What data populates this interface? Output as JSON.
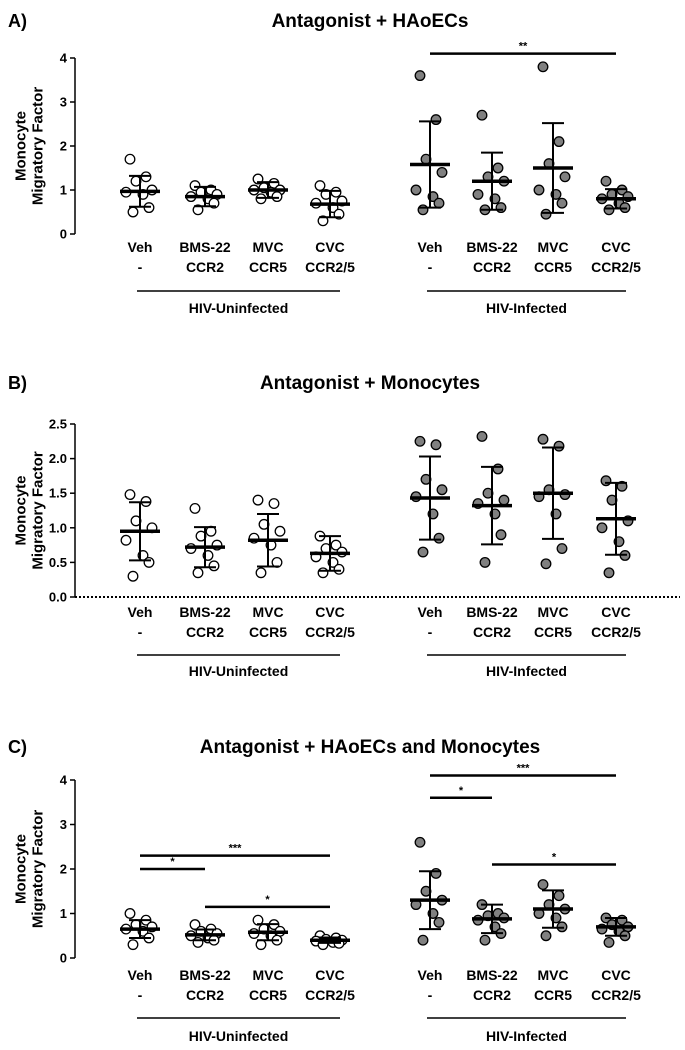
{
  "chart_data": [
    {
      "type": "scatter",
      "panel": "A)",
      "title": "Antagonist + HAoECs",
      "ylabel": "Monocyte\nMigratory Factor",
      "ylim": [
        0,
        4
      ],
      "yticks": [
        "0",
        "1",
        "2",
        "3",
        "4"
      ],
      "categories": [
        [
          "Veh",
          "-"
        ],
        [
          "BMS-22",
          "CCR2"
        ],
        [
          "MVC",
          "CCR5"
        ],
        [
          "CVC",
          "CCR2/5"
        ],
        [
          "Veh",
          "-"
        ],
        [
          "BMS-22",
          "CCR2"
        ],
        [
          "MVC",
          "CCR5"
        ],
        [
          "CVC",
          "CCR2/5"
        ]
      ],
      "groups": [
        {
          "label": "HIV-Uninfected",
          "categories": [
            0,
            1,
            2,
            3
          ],
          "fill": "#ffffff"
        },
        {
          "label": "HIV-Infected",
          "categories": [
            4,
            5,
            6,
            7
          ],
          "fill": "#808080"
        }
      ],
      "points": [
        [
          1.7,
          1.3,
          1.2,
          1.0,
          0.95,
          0.9,
          0.6,
          0.5
        ],
        [
          1.1,
          1.0,
          0.95,
          0.9,
          0.85,
          0.8,
          0.7,
          0.55
        ],
        [
          1.25,
          1.15,
          1.05,
          1.0,
          1.0,
          0.95,
          0.85,
          0.8
        ],
        [
          1.1,
          0.95,
          0.9,
          0.75,
          0.7,
          0.6,
          0.45,
          0.3
        ],
        [
          3.6,
          2.6,
          1.7,
          1.4,
          1.0,
          0.85,
          0.7,
          0.55
        ],
        [
          2.7,
          1.5,
          1.3,
          1.2,
          0.9,
          0.8,
          0.6,
          0.55
        ],
        [
          3.8,
          2.1,
          1.6,
          1.3,
          1.0,
          0.9,
          0.7,
          0.45
        ],
        [
          1.2,
          1.0,
          0.9,
          0.85,
          0.8,
          0.7,
          0.6,
          0.55
        ]
      ],
      "mean": [
        0.97,
        0.85,
        1.0,
        0.68,
        1.58,
        1.2,
        1.5,
        0.8
      ],
      "sd": [
        0.35,
        0.22,
        0.18,
        0.3,
        0.98,
        0.65,
        1.02,
        0.22
      ],
      "significance": [
        {
          "from": 4,
          "to": 7,
          "y": 4.1,
          "label": "**"
        }
      ]
    },
    {
      "type": "scatter",
      "panel": "B)",
      "title": "Antagonist + Monocytes",
      "ylabel": "Monocyte\nMigratory Factor",
      "ylim": [
        0,
        2.5
      ],
      "yticks": [
        "0.0",
        "0.5",
        "1.0",
        "1.5",
        "2.0",
        "2.5"
      ],
      "categories": [
        [
          "Veh",
          "-"
        ],
        [
          "BMS-22",
          "CCR2"
        ],
        [
          "MVC",
          "CCR5"
        ],
        [
          "CVC",
          "CCR2/5"
        ],
        [
          "Veh",
          "-"
        ],
        [
          "BMS-22",
          "CCR2"
        ],
        [
          "MVC",
          "CCR5"
        ],
        [
          "CVC",
          "CCR2/5"
        ]
      ],
      "groups": [
        {
          "label": "HIV-Uninfected",
          "categories": [
            0,
            1,
            2,
            3
          ],
          "fill": "#ffffff"
        },
        {
          "label": "HIV-Infected",
          "categories": [
            4,
            5,
            6,
            7
          ],
          "fill": "#808080"
        }
      ],
      "points": [
        [
          1.48,
          1.38,
          1.1,
          1.0,
          0.82,
          0.6,
          0.5,
          0.3
        ],
        [
          1.28,
          0.95,
          0.88,
          0.75,
          0.7,
          0.6,
          0.45,
          0.35
        ],
        [
          1.4,
          1.35,
          1.05,
          0.95,
          0.85,
          0.75,
          0.5,
          0.35
        ],
        [
          0.88,
          0.75,
          0.7,
          0.65,
          0.58,
          0.5,
          0.4,
          0.35
        ],
        [
          2.25,
          2.2,
          1.7,
          1.55,
          1.45,
          1.2,
          0.85,
          0.65
        ],
        [
          2.32,
          1.85,
          1.5,
          1.4,
          1.35,
          1.2,
          0.9,
          0.5
        ],
        [
          2.28,
          2.18,
          1.55,
          1.48,
          1.45,
          1.2,
          0.7,
          0.48
        ],
        [
          1.68,
          1.6,
          1.4,
          1.1,
          1.0,
          0.8,
          0.6,
          0.35
        ]
      ],
      "mean": [
        0.95,
        0.72,
        0.82,
        0.63,
        1.43,
        1.32,
        1.5,
        1.13
      ],
      "sd": [
        0.42,
        0.29,
        0.38,
        0.25,
        0.6,
        0.56,
        0.66,
        0.52
      ],
      "significance": []
    },
    {
      "type": "scatter",
      "panel": "C)",
      "title": "Antagonist + HAoECs and Monocytes",
      "ylabel": "Monocyte\nMigratory Factor",
      "ylim": [
        0,
        4
      ],
      "yticks": [
        "0",
        "1",
        "2",
        "3",
        "4"
      ],
      "categories": [
        [
          "Veh",
          "-"
        ],
        [
          "BMS-22",
          "CCR2"
        ],
        [
          "MVC",
          "CCR5"
        ],
        [
          "CVC",
          "CCR2/5"
        ],
        [
          "Veh",
          "-"
        ],
        [
          "BMS-22",
          "CCR2"
        ],
        [
          "MVC",
          "CCR5"
        ],
        [
          "CVC",
          "CCR2/5"
        ]
      ],
      "groups": [
        {
          "label": "HIV-Uninfected",
          "categories": [
            0,
            1,
            2,
            3
          ],
          "fill": "#ffffff"
        },
        {
          "label": "HIV-Infected",
          "categories": [
            4,
            5,
            6,
            7
          ],
          "fill": "#808080"
        }
      ],
      "points": [
        [
          1.0,
          0.85,
          0.75,
          0.7,
          0.65,
          0.6,
          0.45,
          0.3
        ],
        [
          0.75,
          0.65,
          0.6,
          0.55,
          0.5,
          0.45,
          0.4,
          0.35
        ],
        [
          0.85,
          0.75,
          0.65,
          0.6,
          0.55,
          0.5,
          0.4,
          0.3
        ],
        [
          0.5,
          0.45,
          0.42,
          0.4,
          0.38,
          0.35,
          0.33,
          0.3
        ],
        [
          2.6,
          1.9,
          1.5,
          1.3,
          1.2,
          1.0,
          0.8,
          0.4
        ],
        [
          1.2,
          1.0,
          0.95,
          0.9,
          0.85,
          0.7,
          0.55,
          0.4
        ],
        [
          1.65,
          1.4,
          1.2,
          1.1,
          1.0,
          0.9,
          0.7,
          0.5
        ],
        [
          0.9,
          0.85,
          0.75,
          0.7,
          0.65,
          0.6,
          0.5,
          0.35
        ]
      ],
      "mean": [
        0.65,
        0.52,
        0.58,
        0.4,
        1.3,
        0.88,
        1.1,
        0.7
      ],
      "sd": [
        0.2,
        0.12,
        0.18,
        0.06,
        0.65,
        0.32,
        0.42,
        0.2
      ],
      "significance": [
        {
          "from": 0,
          "to": 1,
          "y": 2.0,
          "label": "*"
        },
        {
          "from": 0,
          "to": 3,
          "y": 2.3,
          "label": "***"
        },
        {
          "from": 1,
          "to": 3,
          "y": 1.15,
          "label": "*"
        },
        {
          "from": 4,
          "to": 5,
          "y": 3.6,
          "label": "*"
        },
        {
          "from": 4,
          "to": 7,
          "y": 4.1,
          "label": "***"
        },
        {
          "from": 5,
          "to": 7,
          "y": 2.1,
          "label": "*"
        }
      ]
    }
  ]
}
